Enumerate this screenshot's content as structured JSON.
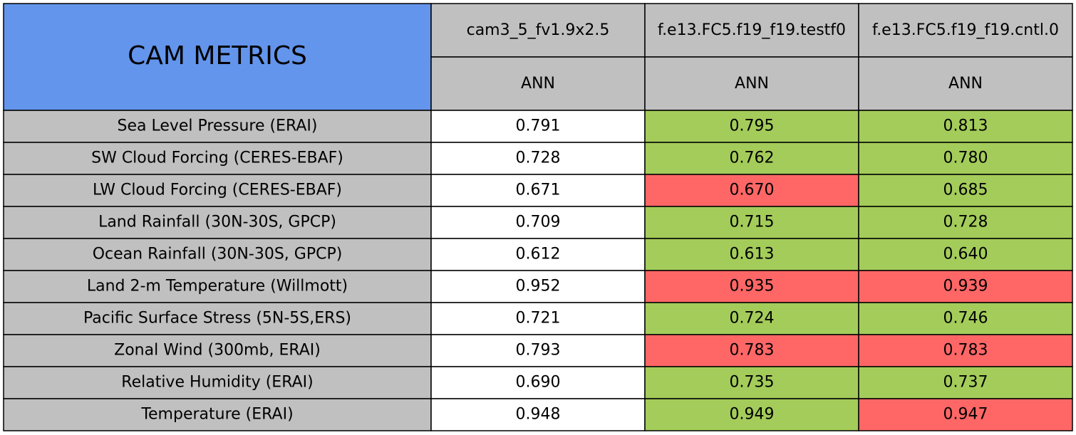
{
  "header": {
    "title": "CAM METRICS"
  },
  "columns": [
    {
      "name": "cam3_5_fv1.9x2.5",
      "period": "ANN"
    },
    {
      "name": "f.e13.FC5.f19_f19.testf0",
      "period": "ANN"
    },
    {
      "name": "f.e13.FC5.f19_f19.cntl.0",
      "period": "ANN"
    }
  ],
  "rows": [
    {
      "label": "Sea Level Pressure (ERAI)",
      "values": [
        "0.791",
        "0.795",
        "0.813"
      ],
      "colors": [
        "#ffffff",
        "#a3cc5a",
        "#a3cc5a"
      ]
    },
    {
      "label": "SW Cloud Forcing (CERES-EBAF)",
      "values": [
        "0.728",
        "0.762",
        "0.780"
      ],
      "colors": [
        "#ffffff",
        "#a3cc5a",
        "#a3cc5a"
      ]
    },
    {
      "label": "LW Cloud Forcing (CERES-EBAF)",
      "values": [
        "0.671",
        "0.670",
        "0.685"
      ],
      "colors": [
        "#ffffff",
        "#ff6666",
        "#a3cc5a"
      ]
    },
    {
      "label": "Land Rainfall (30N-30S, GPCP)",
      "values": [
        "0.709",
        "0.715",
        "0.728"
      ],
      "colors": [
        "#ffffff",
        "#a3cc5a",
        "#a3cc5a"
      ]
    },
    {
      "label": "Ocean Rainfall (30N-30S, GPCP)",
      "values": [
        "0.612",
        "0.613",
        "0.640"
      ],
      "colors": [
        "#ffffff",
        "#a3cc5a",
        "#a3cc5a"
      ]
    },
    {
      "label": "Land 2-m Temperature (Willmott)",
      "values": [
        "0.952",
        "0.935",
        "0.939"
      ],
      "colors": [
        "#ffffff",
        "#ff6666",
        "#ff6666"
      ]
    },
    {
      "label": "Pacific Surface Stress (5N-5S,ERS)",
      "values": [
        "0.721",
        "0.724",
        "0.746"
      ],
      "colors": [
        "#ffffff",
        "#a3cc5a",
        "#a3cc5a"
      ]
    },
    {
      "label": "Zonal Wind (300mb, ERAI)",
      "values": [
        "0.793",
        "0.783",
        "0.783"
      ],
      "colors": [
        "#ffffff",
        "#ff6666",
        "#ff6666"
      ]
    },
    {
      "label": "Relative Humidity (ERAI)",
      "values": [
        "0.690",
        "0.735",
        "0.737"
      ],
      "colors": [
        "#ffffff",
        "#a3cc5a",
        "#a3cc5a"
      ]
    },
    {
      "label": "Temperature (ERAI)",
      "values": [
        "0.948",
        "0.949",
        "0.947"
      ],
      "colors": [
        "#ffffff",
        "#a3cc5a",
        "#ff6666"
      ]
    }
  ]
}
